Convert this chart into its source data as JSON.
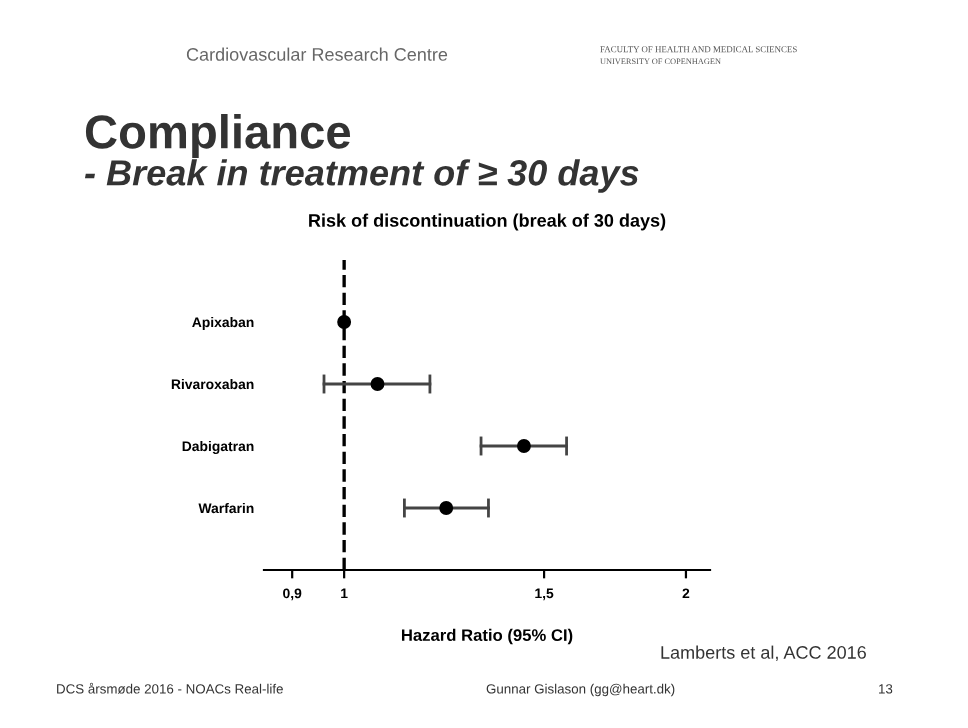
{
  "chart_data": {
    "type": "scatter",
    "orientation": "horizontal",
    "title": "Risk of discontinuation (break of 30 days)",
    "xlabel": "Hazard Ratio (95% CI)",
    "categories": [
      "Apixaban",
      "Rivaroxaban",
      "Dabigatran",
      "Warfarin"
    ],
    "values": [
      1.0,
      1.07,
      1.44,
      1.23
    ],
    "errors": [
      null,
      [
        0.96,
        1.19
      ],
      [
        1.32,
        1.57
      ],
      [
        1.13,
        1.34
      ]
    ],
    "color": "#000000",
    "log": "x",
    "xlim": [
      0.85,
      2.1
    ],
    "xticks": [
      {
        "value": 0.9,
        "label": "0,9"
      },
      1,
      {
        "value": 1.5,
        "label": "1,5"
      },
      2
    ],
    "ref_lines": [
      {
        "axis": "x",
        "value": 1,
        "line_style": "dashed",
        "color": "#000000"
      }
    ],
    "marker": "circle",
    "grid": false,
    "annotations": [
      "Compliance",
      "- Break in treatment of ≥ 30 days",
      "Cardiovascular Research Centre",
      "FACULTY OF HEALTH AND MEDICAL SCIENCES",
      "UNIVERSITY OF COPENHAGEN",
      "Lamberts et al, ACC 2016",
      "DCS årsmøde 2016 - NOACs Real-life",
      "Gunnar Gislason (gg@heart.dk)",
      "13"
    ]
  }
}
